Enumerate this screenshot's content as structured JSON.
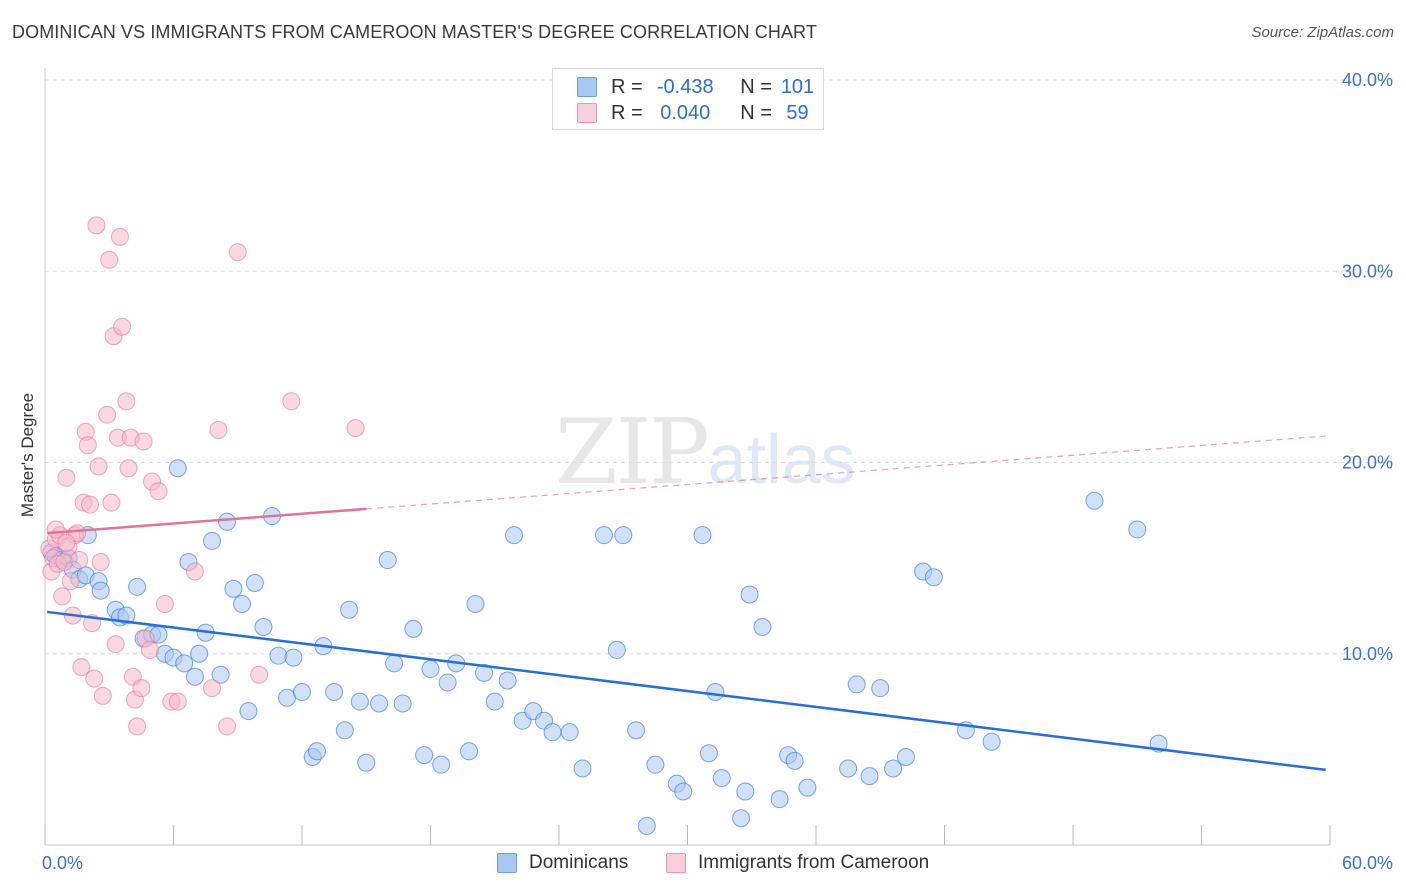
{
  "title": "DOMINICAN VS IMMIGRANTS FROM CAMEROON MASTER'S DEGREE CORRELATION CHART",
  "source": "Source: ZipAtlas.com",
  "watermark": {
    "zip": "ZIP",
    "atlas": "atlas"
  },
  "legend_top": [
    {
      "r_label": "R =",
      "r_value": "-0.438",
      "n_label": "N =",
      "n_value": "101",
      "color": "#a9c8f0"
    },
    {
      "r_label": "R =",
      "r_value": "0.040",
      "n_label": "N =",
      "n_value": "59",
      "color": "#f5b8cb"
    }
  ],
  "chart_data": {
    "type": "scatter",
    "ylabel": "Master's Degree",
    "xlim": [
      0,
      60
    ],
    "ylim": [
      0,
      40
    ],
    "x_tick_labels": [
      {
        "value": 0,
        "label": "0.0%"
      },
      {
        "value": 60,
        "label": "60.0%"
      }
    ],
    "y_tick_labels": [
      {
        "value": 10,
        "label": "10.0%"
      },
      {
        "value": 20,
        "label": "20.0%"
      },
      {
        "value": 30,
        "label": "30.0%"
      },
      {
        "value": 40,
        "label": "40.0%"
      }
    ],
    "grid": true,
    "series": [
      {
        "name": "Dominicans",
        "color": "#2a6fd0",
        "fill": "#a9c8f0",
        "trend": {
          "x": [
            0,
            60
          ],
          "y": [
            12.2,
            3.9
          ],
          "dashed_from": null
        },
        "points": [
          [
            0.3,
            15.3
          ],
          [
            0.5,
            15.1
          ],
          [
            0.8,
            14.9
          ],
          [
            1.1,
            15.0
          ],
          [
            1.3,
            14.4
          ],
          [
            1.6,
            13.9
          ],
          [
            1.9,
            14.1
          ],
          [
            2.0,
            16.2
          ],
          [
            2.5,
            13.8
          ],
          [
            2.6,
            13.3
          ],
          [
            3.3,
            12.3
          ],
          [
            3.5,
            11.9
          ],
          [
            3.8,
            12.0
          ],
          [
            4.3,
            13.5
          ],
          [
            4.6,
            10.8
          ],
          [
            5.0,
            11.0
          ],
          [
            5.3,
            11.0
          ],
          [
            5.6,
            10.0
          ],
          [
            6.0,
            9.8
          ],
          [
            6.2,
            19.7
          ],
          [
            6.5,
            9.5
          ],
          [
            6.7,
            14.8
          ],
          [
            7.0,
            8.8
          ],
          [
            7.2,
            10.0
          ],
          [
            7.5,
            11.1
          ],
          [
            7.8,
            15.9
          ],
          [
            8.2,
            8.9
          ],
          [
            8.5,
            16.9
          ],
          [
            8.8,
            13.4
          ],
          [
            9.2,
            12.6
          ],
          [
            9.5,
            7.0
          ],
          [
            9.8,
            13.7
          ],
          [
            10.2,
            11.4
          ],
          [
            10.6,
            17.2
          ],
          [
            10.9,
            9.9
          ],
          [
            11.3,
            7.7
          ],
          [
            11.6,
            9.8
          ],
          [
            12.0,
            8.0
          ],
          [
            12.5,
            4.6
          ],
          [
            12.7,
            4.9
          ],
          [
            13.0,
            10.4
          ],
          [
            13.5,
            8.0
          ],
          [
            14.0,
            6.0
          ],
          [
            14.2,
            12.3
          ],
          [
            14.7,
            7.5
          ],
          [
            15.0,
            4.3
          ],
          [
            15.6,
            7.4
          ],
          [
            16.0,
            14.9
          ],
          [
            16.3,
            9.5
          ],
          [
            16.7,
            7.4
          ],
          [
            17.2,
            11.3
          ],
          [
            17.7,
            4.7
          ],
          [
            18.0,
            9.2
          ],
          [
            18.5,
            4.2
          ],
          [
            18.8,
            8.5
          ],
          [
            19.2,
            9.5
          ],
          [
            19.8,
            4.9
          ],
          [
            20.1,
            12.6
          ],
          [
            20.5,
            9.0
          ],
          [
            21.0,
            7.5
          ],
          [
            21.6,
            8.6
          ],
          [
            21.9,
            16.2
          ],
          [
            22.3,
            6.5
          ],
          [
            22.8,
            7.0
          ],
          [
            23.3,
            6.5
          ],
          [
            23.7,
            5.9
          ],
          [
            24.5,
            5.9
          ],
          [
            25.1,
            4.0
          ],
          [
            26.1,
            16.2
          ],
          [
            26.7,
            10.2
          ],
          [
            27.0,
            16.2
          ],
          [
            27.6,
            6.0
          ],
          [
            28.1,
            1.0
          ],
          [
            28.5,
            4.2
          ],
          [
            29.5,
            3.2
          ],
          [
            29.8,
            2.8
          ],
          [
            30.7,
            16.2
          ],
          [
            31.0,
            4.8
          ],
          [
            31.3,
            8.0
          ],
          [
            31.6,
            3.5
          ],
          [
            32.5,
            1.4
          ],
          [
            32.7,
            2.8
          ],
          [
            32.9,
            13.1
          ],
          [
            33.5,
            11.4
          ],
          [
            34.3,
            2.4
          ],
          [
            34.7,
            4.7
          ],
          [
            35.0,
            4.4
          ],
          [
            35.6,
            3.0
          ],
          [
            37.5,
            4.0
          ],
          [
            37.9,
            8.4
          ],
          [
            38.5,
            3.6
          ],
          [
            39.0,
            8.2
          ],
          [
            39.6,
            4.0
          ],
          [
            40.2,
            4.6
          ],
          [
            41.0,
            14.3
          ],
          [
            41.5,
            14.0
          ],
          [
            43.0,
            6.0
          ],
          [
            44.2,
            5.4
          ],
          [
            49.0,
            18.0
          ],
          [
            51.0,
            16.5
          ],
          [
            52.0,
            5.3
          ]
        ]
      },
      {
        "name": "Immigrants from Cameroon",
        "color": "#e0739a",
        "fill": "#f5b8cb",
        "trend": {
          "x": [
            0,
            60
          ],
          "y": [
            16.3,
            21.4
          ],
          "dashed_from": 15
        },
        "points": [
          [
            0.2,
            15.5
          ],
          [
            0.3,
            14.3
          ],
          [
            0.4,
            15.0
          ],
          [
            0.5,
            16.0
          ],
          [
            0.6,
            14.7
          ],
          [
            0.7,
            16.2
          ],
          [
            0.8,
            13.0
          ],
          [
            0.9,
            14.8
          ],
          [
            1.0,
            19.2
          ],
          [
            1.1,
            15.6
          ],
          [
            1.2,
            13.8
          ],
          [
            1.3,
            12.0
          ],
          [
            1.4,
            16.2
          ],
          [
            1.5,
            16.3
          ],
          [
            1.6,
            14.9
          ],
          [
            1.7,
            9.3
          ],
          [
            1.8,
            17.9
          ],
          [
            1.9,
            21.6
          ],
          [
            2.0,
            20.9
          ],
          [
            2.1,
            17.8
          ],
          [
            2.2,
            11.6
          ],
          [
            2.3,
            8.7
          ],
          [
            2.4,
            32.4
          ],
          [
            2.5,
            19.8
          ],
          [
            2.6,
            14.8
          ],
          [
            2.7,
            7.8
          ],
          [
            2.9,
            22.5
          ],
          [
            3.0,
            30.6
          ],
          [
            3.1,
            17.9
          ],
          [
            3.2,
            26.6
          ],
          [
            3.3,
            10.5
          ],
          [
            3.4,
            21.3
          ],
          [
            3.5,
            31.8
          ],
          [
            3.6,
            27.1
          ],
          [
            3.8,
            23.2
          ],
          [
            3.9,
            19.7
          ],
          [
            4.0,
            21.3
          ],
          [
            4.1,
            8.8
          ],
          [
            4.2,
            7.6
          ],
          [
            4.3,
            6.2
          ],
          [
            4.5,
            8.2
          ],
          [
            4.6,
            21.1
          ],
          [
            4.7,
            10.8
          ],
          [
            4.9,
            10.2
          ],
          [
            5.0,
            19.0
          ],
          [
            5.3,
            18.5
          ],
          [
            5.6,
            12.6
          ],
          [
            5.9,
            7.5
          ],
          [
            6.2,
            7.5
          ],
          [
            7.0,
            14.3
          ],
          [
            7.8,
            8.2
          ],
          [
            8.1,
            21.7
          ],
          [
            8.5,
            6.2
          ],
          [
            9.0,
            31.0
          ],
          [
            10.0,
            8.9
          ],
          [
            11.5,
            23.2
          ],
          [
            14.5,
            21.8
          ],
          [
            0.5,
            16.5
          ],
          [
            1.0,
            15.8
          ]
        ]
      }
    ]
  }
}
